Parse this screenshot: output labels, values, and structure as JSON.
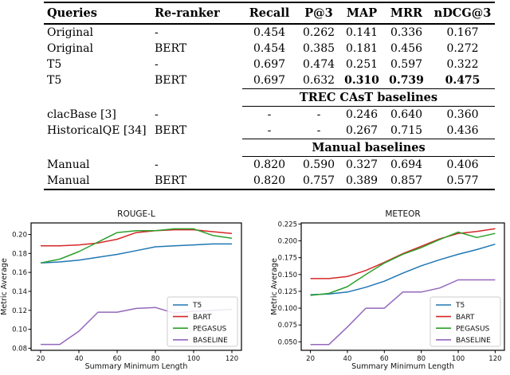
{
  "table": {
    "headers": [
      "Queries",
      "Re-ranker",
      "Recall",
      "P@3",
      "MAP",
      "MRR",
      "nDCG@3"
    ],
    "rows": [
      {
        "cells": [
          "Original",
          "-",
          "0.454",
          "0.262",
          "0.141",
          "0.336",
          "0.167"
        ]
      },
      {
        "cells": [
          "Original",
          "BERT",
          "0.454",
          "0.385",
          "0.181",
          "0.456",
          "0.272"
        ]
      },
      {
        "cells": [
          "T5",
          "-",
          "0.697",
          "0.474",
          "0.251",
          "0.597",
          "0.322"
        ]
      },
      {
        "cells": [
          "T5",
          "BERT",
          "0.697",
          "0.632",
          "0.310",
          "0.739",
          "0.475"
        ],
        "bold": [
          4,
          5,
          6
        ]
      },
      {
        "section": "TREC CAsT baselines"
      },
      {
        "cells": [
          "clacBase [3]",
          "-",
          "-",
          "-",
          "0.246",
          "0.640",
          "0.360"
        ]
      },
      {
        "cells": [
          "HistoricalQE [34]",
          "BERT",
          "-",
          "-",
          "0.267",
          "0.715",
          "0.436"
        ]
      },
      {
        "section": "Manual baselines"
      },
      {
        "cells": [
          "Manual",
          "-",
          "0.820",
          "0.590",
          "0.327",
          "0.694",
          "0.406"
        ]
      },
      {
        "cells": [
          "Manual",
          "BERT",
          "0.820",
          "0.757",
          "0.389",
          "0.857",
          "0.577"
        ]
      }
    ]
  },
  "chart_data": [
    {
      "type": "line",
      "title": "ROUGE-L",
      "xlabel": "Summary Minimum Length",
      "ylabel": "Metric Average",
      "x": [
        20,
        30,
        40,
        50,
        60,
        70,
        80,
        90,
        100,
        110,
        120
      ],
      "xlim": [
        15,
        125
      ],
      "ylim": [
        0.0778,
        0.2122
      ],
      "xtick_values": [
        20,
        40,
        60,
        80,
        100,
        120
      ],
      "xtick_labels": [
        "20",
        "40",
        "60",
        "80",
        "100",
        "120"
      ],
      "ytick_values": [
        0.08,
        0.1,
        0.12,
        0.14,
        0.16,
        0.18,
        0.2
      ],
      "ytick_labels": [
        "0.08",
        "0.10",
        "0.12",
        "0.14",
        "0.16",
        "0.18",
        "0.20"
      ],
      "grid": false,
      "legend_position": "lower right",
      "series": [
        {
          "name": "T5",
          "color": "#1f77b4",
          "values": [
            0.17,
            0.171,
            0.173,
            0.176,
            0.179,
            0.183,
            0.187,
            0.188,
            0.189,
            0.19,
            0.19
          ]
        },
        {
          "name": "BART",
          "color": "#d62728",
          "values": [
            0.188,
            0.188,
            0.189,
            0.191,
            0.195,
            0.202,
            0.204,
            0.205,
            0.205,
            0.203,
            0.201
          ]
        },
        {
          "name": "PEGASUS",
          "color": "#2ca02c",
          "values": [
            0.17,
            0.174,
            0.182,
            0.192,
            0.202,
            0.204,
            0.204,
            0.206,
            0.206,
            0.199,
            0.196
          ]
        },
        {
          "name": "BASELINE",
          "color": "#9467bd",
          "values": [
            0.084,
            0.084,
            0.098,
            0.118,
            0.118,
            0.122,
            0.123,
            0.117,
            0.119,
            0.12,
            0.121
          ]
        }
      ]
    },
    {
      "type": "line",
      "title": "METEOR",
      "xlabel": "Summary Minimum Length",
      "ylabel": "Metric Average",
      "x": [
        20,
        30,
        40,
        50,
        60,
        70,
        80,
        90,
        100,
        110,
        120
      ],
      "xlim": [
        15,
        125
      ],
      "ylim": [
        0.0374,
        0.2266
      ],
      "xtick_values": [
        20,
        40,
        60,
        80,
        100,
        120
      ],
      "xtick_labels": [
        "20",
        "40",
        "60",
        "80",
        "100",
        "120"
      ],
      "ytick_values": [
        0.05,
        0.075,
        0.1,
        0.125,
        0.15,
        0.175,
        0.2,
        0.225
      ],
      "ytick_labels": [
        "0.050",
        "0.075",
        "0.100",
        "0.125",
        "0.150",
        "0.175",
        "0.200",
        "0.225"
      ],
      "grid": false,
      "legend_position": "lower right",
      "series": [
        {
          "name": "T5",
          "color": "#1f77b4",
          "values": [
            0.12,
            0.121,
            0.124,
            0.131,
            0.14,
            0.152,
            0.163,
            0.172,
            0.18,
            0.187,
            0.195
          ]
        },
        {
          "name": "BART",
          "color": "#d62728",
          "values": [
            0.144,
            0.144,
            0.147,
            0.156,
            0.168,
            0.181,
            0.192,
            0.203,
            0.211,
            0.214,
            0.218
          ]
        },
        {
          "name": "PEGASUS",
          "color": "#2ca02c",
          "values": [
            0.119,
            0.122,
            0.132,
            0.15,
            0.167,
            0.18,
            0.19,
            0.202,
            0.213,
            0.205,
            0.211
          ]
        },
        {
          "name": "BASELINE",
          "color": "#9467bd",
          "values": [
            0.046,
            0.046,
            0.072,
            0.1,
            0.1,
            0.124,
            0.124,
            0.13,
            0.142,
            0.142,
            0.142
          ]
        }
      ]
    }
  ],
  "colors": {
    "t5": "#1f77b4",
    "bart": "#d62728",
    "pegasus": "#2ca02c",
    "baseline": "#9467bd",
    "axis": "#000000",
    "legend_border": "#cccccc"
  }
}
